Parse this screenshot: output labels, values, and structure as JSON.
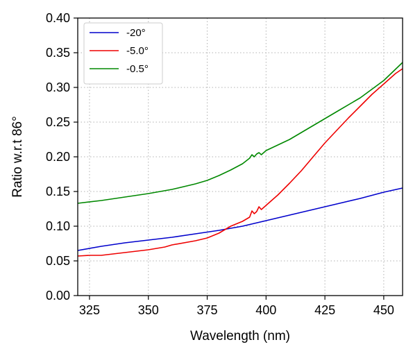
{
  "chart_data": {
    "type": "line",
    "title": "",
    "xlabel": "Wavelength (nm)",
    "ylabel": "Ratio w.r.t 86°",
    "xlim": [
      320,
      458
    ],
    "ylim": [
      0.0,
      0.4
    ],
    "xticks": [
      325,
      350,
      375,
      400,
      425,
      450
    ],
    "xtick_labels": [
      "325",
      "350",
      "375",
      "400",
      "425",
      "450"
    ],
    "yticks": [
      0.0,
      0.05,
      0.1,
      0.15,
      0.2,
      0.25,
      0.3,
      0.35,
      0.4
    ],
    "ytick_labels": [
      "0.00",
      "0.05",
      "0.10",
      "0.15",
      "0.20",
      "0.25",
      "0.30",
      "0.35",
      "0.40"
    ],
    "grid": true,
    "grid_style": "dotted",
    "legend_position": "upper-left",
    "series": [
      {
        "name": "-20°",
        "color": "#0000cc",
        "x": [
          320,
          330,
          340,
          350,
          360,
          370,
          380,
          385,
          390,
          395,
          400,
          410,
          420,
          430,
          440,
          450,
          458
        ],
        "y": [
          0.065,
          0.071,
          0.076,
          0.08,
          0.084,
          0.089,
          0.094,
          0.097,
          0.1,
          0.104,
          0.108,
          0.116,
          0.124,
          0.132,
          0.14,
          0.149,
          0.155
        ]
      },
      {
        "name": "-5.0°",
        "color": "#ee0000",
        "x": [
          320,
          325,
          330,
          340,
          350,
          357,
          360,
          370,
          375,
          380,
          385,
          390,
          393,
          394,
          395,
          396,
          397,
          398,
          400,
          405,
          410,
          415,
          420,
          425,
          430,
          435,
          440,
          445,
          450,
          455,
          458
        ],
        "y": [
          0.057,
          0.058,
          0.058,
          0.062,
          0.066,
          0.07,
          0.073,
          0.079,
          0.083,
          0.09,
          0.1,
          0.107,
          0.113,
          0.122,
          0.118,
          0.121,
          0.128,
          0.124,
          0.13,
          0.145,
          0.162,
          0.18,
          0.2,
          0.22,
          0.238,
          0.256,
          0.273,
          0.29,
          0.305,
          0.32,
          0.327
        ]
      },
      {
        "name": "-0.5°",
        "color": "#008800",
        "x": [
          320,
          330,
          340,
          350,
          360,
          370,
          375,
          380,
          385,
          390,
          393,
          394,
          395,
          396,
          397,
          398,
          400,
          410,
          420,
          430,
          440,
          450,
          458
        ],
        "y": [
          0.133,
          0.137,
          0.142,
          0.147,
          0.153,
          0.161,
          0.166,
          0.173,
          0.181,
          0.19,
          0.198,
          0.203,
          0.2,
          0.204,
          0.206,
          0.203,
          0.209,
          0.225,
          0.245,
          0.265,
          0.285,
          0.31,
          0.336
        ]
      }
    ]
  }
}
